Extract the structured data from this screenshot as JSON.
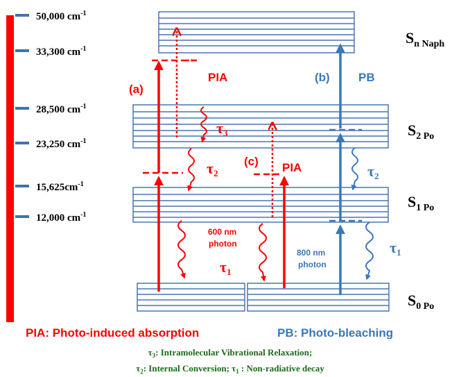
{
  "energy_levels": [
    {
      "label": "50,000 cm",
      "exp": "-1"
    },
    {
      "label": "33,300 cm",
      "exp": "-1"
    },
    {
      "label": "28,500 cm",
      "exp": "-1"
    },
    {
      "label": "23,250 cm",
      "exp": "-1"
    },
    {
      "label": "15,625cm",
      "exp": "-1"
    },
    {
      "label": "12,000 cm",
      "exp": "-1"
    }
  ],
  "states": [
    {
      "main": "S",
      "sub": "n Naph"
    },
    {
      "main": "S",
      "sub": "2 Po"
    },
    {
      "main": "S",
      "sub": "1 Po"
    },
    {
      "main": "S",
      "sub": "0 Po"
    }
  ],
  "labels": {
    "a": "(a)",
    "pia1": "PIA",
    "b": "(b)",
    "pb": "PB",
    "c": "(c)",
    "pia2": "PIA",
    "photon600_line1": "600 nm",
    "photon600_line2": "photon",
    "photon800_line1": "800 nm",
    "photon800_line2": "photon"
  },
  "taus": {
    "tau3": {
      "main": "τ",
      "sub": "3"
    },
    "tau2_red": {
      "main": "τ",
      "sub": "2"
    },
    "tau1_red": {
      "main": "τ",
      "sub": "1"
    },
    "tau2_blue": {
      "main": "τ",
      "sub": "2"
    },
    "tau1_blue": {
      "main": "τ",
      "sub": "1"
    }
  },
  "legend": {
    "pia": "PIA: Photo-induced absorption",
    "pb": "PB: Photo-bleaching"
  },
  "footnote": {
    "line1_tau": "τ",
    "line1_sub": "3",
    "line1_text": ": Intramolecular Vibrational Relaxation;",
    "line2_tau_a": "τ",
    "line2_sub_a": "2",
    "line2_text_a": ": Internal Conversion; ",
    "line2_tau_b": "τ",
    "line2_sub_b": "1",
    "line2_text_b": " : Non-radiative decay"
  },
  "colors": {
    "red": "#ff0000",
    "blue": "#3a78b8",
    "box": "#4a74b0",
    "tick": "#3f72b0"
  }
}
